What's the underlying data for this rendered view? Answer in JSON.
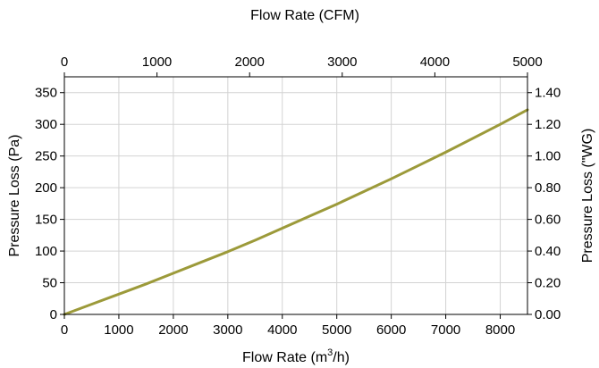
{
  "chart_data": {
    "type": "line",
    "x_axis_bottom": {
      "label_main": "Flow Rate (m",
      "label_sup": "3",
      "label_end": "/h)",
      "ticks": [
        0,
        1000,
        2000,
        3000,
        4000,
        5000,
        6000,
        7000,
        8000
      ],
      "range": [
        0,
        8500
      ]
    },
    "x_axis_top": {
      "label": "Flow Rate (CFM)",
      "ticks": [
        0,
        1000,
        2000,
        3000,
        4000,
        5000
      ],
      "range": [
        0,
        5000
      ]
    },
    "y_axis_left": {
      "label": "Pressure Loss (Pa)",
      "ticks": [
        0,
        50,
        100,
        150,
        200,
        250,
        300,
        350
      ],
      "range": [
        0,
        375
      ]
    },
    "y_axis_right": {
      "label": "Pressure Loss (\"WG)",
      "ticks": [
        "0.00",
        "0.20",
        "0.40",
        "0.60",
        "0.80",
        "1.00",
        "1.20",
        "1.40"
      ],
      "range": [
        0,
        1.5
      ]
    },
    "grid": true,
    "series": [
      {
        "color": "#9c9a3a",
        "x": [
          0,
          500,
          1000,
          1500,
          2000,
          2500,
          3000,
          3500,
          4000,
          4500,
          5000,
          5500,
          6000,
          6500,
          7000,
          7500,
          8000,
          8500
        ],
        "y": [
          0,
          16,
          32,
          48,
          65,
          82,
          99,
          117,
          136,
          155,
          174,
          194,
          214,
          235,
          256,
          278,
          300,
          323
        ]
      }
    ]
  }
}
